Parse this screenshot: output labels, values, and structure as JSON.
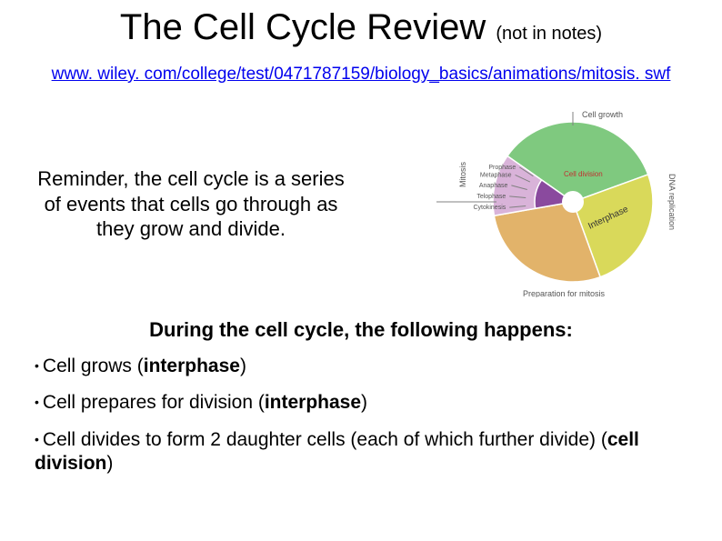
{
  "title": {
    "main": "The Cell Cycle Review",
    "note": "(not in notes)"
  },
  "link": "www. wiley. com/college/test/0471787159/biology_basics/animations/mitosis. swf",
  "reminder": "Reminder, the cell cycle is a series of events that cells go through as they grow and divide.",
  "subheading": "During the cell cycle, the following happens:",
  "bullets": [
    {
      "prefix": "Cell grows (",
      "bold": "interphase",
      "suffix": ")"
    },
    {
      "prefix": "Cell prepares for division (",
      "bold": "interphase",
      "suffix": ")"
    },
    {
      "prefix": "Cell divides to form 2 daughter cells (each of which further divide) (",
      "bold": "cell division",
      "suffix": ")"
    }
  ],
  "diagram": {
    "outer_labels": {
      "top": "Cell growth",
      "right": "DNA replication",
      "bottom": "Preparation for mitosis",
      "left": "Mitosis"
    },
    "wedge_labels": {
      "interphase": "Interphase",
      "celldiv": "Cell division"
    },
    "phase_labels": [
      "Cytokinesis",
      "Telophase",
      "Anaphase",
      "Metaphase",
      "Prophase"
    ],
    "colors": {
      "g1": "#7fc97f",
      "s": "#d9d95a",
      "g2": "#e2b36a",
      "mitosis_outer": "#d9b3d9",
      "mitosis_inner": "#8a4a9e",
      "celldiv_label": "#c13030",
      "axis": "#808080",
      "label_text": "#555555"
    }
  }
}
